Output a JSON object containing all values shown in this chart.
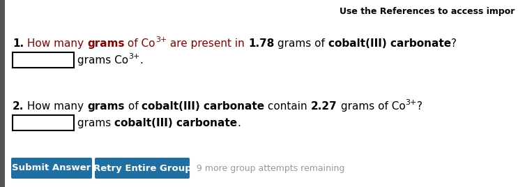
{
  "bg_color": "#ffffff",
  "left_border_color": "#555555",
  "title_text": "Use the References to access impor",
  "btn1_text": "Submit Answer",
  "btn2_text": "Retry Entire Group",
  "btn_color": "#1f6fa3",
  "btn_text_color": "#ffffff",
  "remaining_text": "9 more group attempts remaining",
  "remaining_color": "#999999",
  "input_box_color": "#000000",
  "input_box_fill": "#ffffff",
  "dark_red": "#8B0000",
  "black": "#000000"
}
